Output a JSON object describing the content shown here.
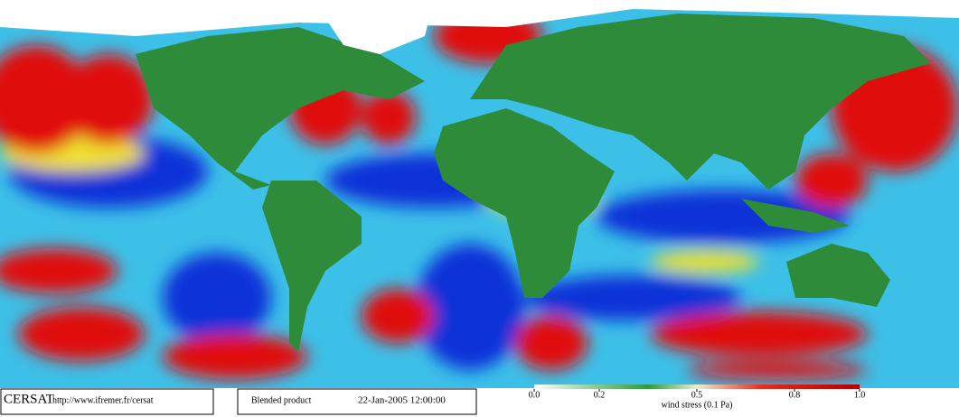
{
  "footer": {
    "logo": "CERSAT",
    "url": "http://www.ifremer.fr/cersat",
    "product": "Blended product",
    "date": "22-Jan-2005 12:00:00"
  },
  "colorbar": {
    "label": "wind stress (0.1 Pa)",
    "ticks": [
      {
        "value": 0,
        "label": "0.0"
      },
      0.2,
      0.5,
      0.8,
      {
        "value": 1,
        "label": "1.0"
      }
    ]
  }
}
